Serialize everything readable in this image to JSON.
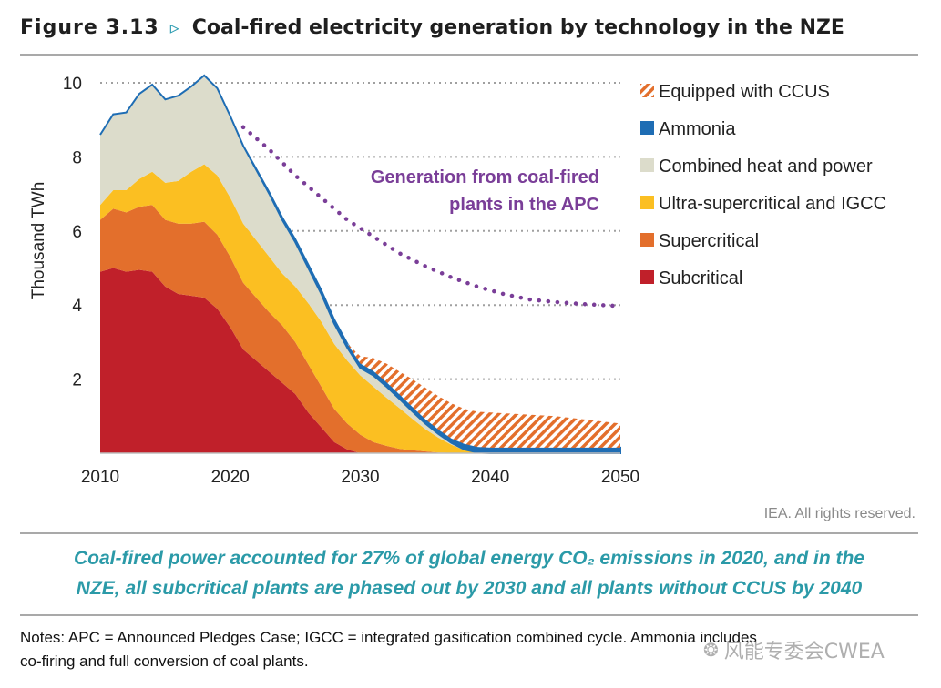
{
  "figure": {
    "number": "Figure 3.13",
    "arrow": "▹",
    "title": "Coal-fired electricity generation by technology in the NZE"
  },
  "chart_data": {
    "type": "area",
    "stacked": true,
    "ylabel": "Thousand TWh",
    "xlabel": "",
    "xlim": [
      2010,
      2050
    ],
    "ylim": [
      0,
      10
    ],
    "x_ticks": [
      2010,
      2020,
      2030,
      2040,
      2050
    ],
    "y_ticks": [
      2,
      4,
      6,
      8,
      10
    ],
    "gridlines": "dotted horizontal",
    "x": [
      2010,
      2011,
      2012,
      2013,
      2014,
      2015,
      2016,
      2017,
      2018,
      2019,
      2020,
      2021,
      2022,
      2023,
      2024,
      2025,
      2026,
      2027,
      2028,
      2029,
      2030,
      2031,
      2032,
      2033,
      2034,
      2035,
      2036,
      2037,
      2038,
      2039,
      2040,
      2045,
      2050
    ],
    "series": [
      {
        "name": "Subcritical",
        "color": "#c0202a",
        "values": [
          4.9,
          5.0,
          4.9,
          4.95,
          4.9,
          4.5,
          4.3,
          4.25,
          4.2,
          3.9,
          3.4,
          2.8,
          2.5,
          2.2,
          1.9,
          1.6,
          1.1,
          0.7,
          0.3,
          0.1,
          0,
          0,
          0,
          0,
          0,
          0,
          0,
          0,
          0,
          0,
          0,
          0,
          0
        ]
      },
      {
        "name": "Supercritical",
        "color": "#e36f2c",
        "values": [
          1.4,
          1.6,
          1.6,
          1.7,
          1.8,
          1.8,
          1.9,
          1.95,
          2.05,
          2.0,
          1.9,
          1.8,
          1.7,
          1.6,
          1.55,
          1.4,
          1.3,
          1.1,
          0.9,
          0.7,
          0.5,
          0.3,
          0.2,
          0.12,
          0.08,
          0.05,
          0.02,
          0.01,
          0,
          0,
          0,
          0,
          0
        ]
      },
      {
        "name": "Ultra-supercritical and IGCC",
        "color": "#fbbf22",
        "values": [
          0.4,
          0.5,
          0.6,
          0.75,
          0.9,
          1.0,
          1.15,
          1.4,
          1.55,
          1.6,
          1.6,
          1.6,
          1.55,
          1.5,
          1.4,
          1.5,
          1.65,
          1.75,
          1.75,
          1.7,
          1.6,
          1.5,
          1.3,
          1.1,
          0.85,
          0.6,
          0.4,
          0.22,
          0.08,
          0.02,
          0,
          0,
          0
        ]
      },
      {
        "name": "Combined heat and power",
        "color": "#dcdccb",
        "values": [
          1.9,
          2.05,
          2.1,
          2.3,
          2.35,
          2.25,
          2.3,
          2.3,
          2.4,
          2.35,
          2.2,
          2.1,
          1.9,
          1.7,
          1.45,
          1.2,
          0.95,
          0.75,
          0.55,
          0.35,
          0.2,
          0.3,
          0.3,
          0.25,
          0.2,
          0.15,
          0.1,
          0.05,
          0.02,
          0,
          0,
          0,
          0
        ]
      },
      {
        "name": "Ammonia",
        "color": "#1e6db4",
        "values": [
          0,
          0,
          0,
          0,
          0,
          0,
          0,
          0,
          0,
          0,
          0,
          0,
          0.02,
          0.04,
          0.06,
          0.08,
          0.09,
          0.1,
          0.11,
          0.11,
          0.12,
          0.12,
          0.12,
          0.12,
          0.12,
          0.12,
          0.12,
          0.12,
          0.15,
          0.15,
          0.15,
          0.15,
          0.15
        ]
      },
      {
        "name": "Equipped with CCUS",
        "color": "#e36f2c",
        "pattern": "hatch",
        "values": [
          0,
          0,
          0,
          0,
          0,
          0,
          0,
          0,
          0,
          0,
          0,
          0,
          0,
          0,
          0,
          0,
          0,
          0,
          0,
          0,
          0.2,
          0.35,
          0.5,
          0.62,
          0.75,
          0.85,
          0.9,
          0.95,
          0.95,
          0.95,
          0.95,
          0.85,
          0.65
        ]
      }
    ],
    "overlay": {
      "name": "Generation from coal-fired plants in the APC",
      "label_lines": [
        "Generation from coal-fired",
        "plants in the APC"
      ],
      "color": "#7a3e98",
      "style": "dotted",
      "x": [
        2021,
        2023,
        2025,
        2027,
        2029,
        2031,
        2033,
        2035,
        2037,
        2039,
        2041,
        2043,
        2045,
        2047,
        2050
      ],
      "values": [
        8.8,
        8.2,
        7.5,
        6.9,
        6.3,
        5.85,
        5.4,
        5.05,
        4.75,
        4.5,
        4.3,
        4.15,
        4.08,
        4.03,
        3.97
      ]
    },
    "legend_position": "top-right"
  },
  "copyright": "IEA. All rights reserved.",
  "summary_lines": [
    "Coal-fired power accounted for 27% of global energy CO₂ emissions in 2020, and in the",
    "NZE, all subcritical plants are phased out by 2030 and all plants without CCUS by 2040"
  ],
  "notes_lines": [
    "Notes: APC = Announced Pledges Case; IGCC = integrated gasification combined cycle. Ammonia includes",
    "co-firing and full conversion of coal plants."
  ],
  "watermark": {
    "icon": "wechat-icon",
    "text": "风能专委会CWEA"
  },
  "colors": {
    "accent_teal": "#2b9aa8",
    "grid": "#a0a0a0",
    "apc_purple": "#7a3e98"
  }
}
